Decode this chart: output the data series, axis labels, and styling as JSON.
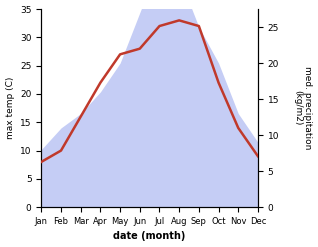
{
  "months": [
    "Jan",
    "Feb",
    "Mar",
    "Apr",
    "May",
    "Jun",
    "Jul",
    "Aug",
    "Sep",
    "Oct",
    "Nov",
    "Dec"
  ],
  "temp": [
    8,
    10,
    16,
    22,
    27,
    28,
    32,
    33,
    32,
    22,
    14,
    9
  ],
  "precip": [
    8,
    11,
    13,
    16,
    20,
    27,
    34,
    32,
    25,
    20,
    13,
    9
  ],
  "temp_color": "#c0392b",
  "precip_fill_color": "#c5cdf5",
  "temp_ylim": [
    0,
    35
  ],
  "precip_ylim": [
    0,
    27.5
  ],
  "temp_yticks": [
    0,
    5,
    10,
    15,
    20,
    25,
    30,
    35
  ],
  "precip_yticks": [
    0,
    5,
    10,
    15,
    20,
    25
  ],
  "xlabel": "date (month)",
  "ylabel_left": "max temp (C)",
  "ylabel_right": "med. precipitation\n(kg/m2)",
  "bg_color": "#ffffff",
  "line_width": 1.8
}
